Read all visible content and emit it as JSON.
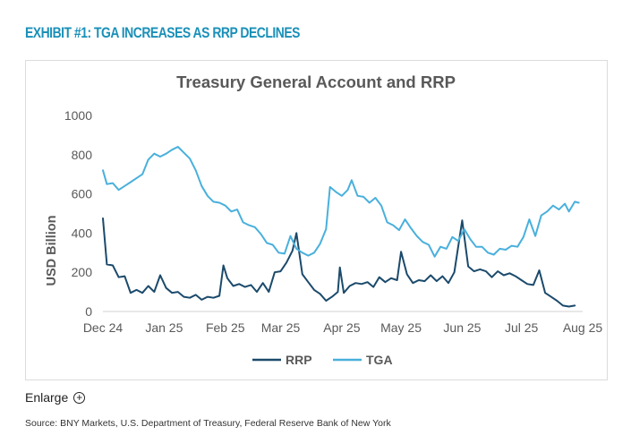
{
  "header": {
    "exhibit_title": "EXHIBIT #1: TGA INCREASES AS RRP DECLINES"
  },
  "enlarge": {
    "label": "Enlarge",
    "icon": "plus-circle-icon"
  },
  "footer": {
    "source": "Source: BNY Markets, U.S. Department of Treasury, Federal Reserve Bank of New York"
  },
  "colors": {
    "title_accent": "#1a90b8",
    "rrp": "#1b4a6b",
    "tga": "#49b0dc"
  },
  "chart_data": {
    "type": "line",
    "title": "Treasury General Account and RRP",
    "ylabel": "USD Billion",
    "xlabel": "",
    "ylim": [
      0,
      1000
    ],
    "yticks": [
      0,
      200,
      400,
      600,
      800,
      1000
    ],
    "xlim": [
      "2024-12-01",
      "2025-08-01"
    ],
    "xticks": [
      {
        "date": "2024-12-01",
        "label": "Dec 24"
      },
      {
        "date": "2025-01-01",
        "label": "Jan 25"
      },
      {
        "date": "2025-02-01",
        "label": "Feb 25"
      },
      {
        "date": "2025-03-01",
        "label": "Mar 25"
      },
      {
        "date": "2025-04-01",
        "label": "Apr 25"
      },
      {
        "date": "2025-05-01",
        "label": "May 25"
      },
      {
        "date": "2025-06-01",
        "label": "Jun 25"
      },
      {
        "date": "2025-07-01",
        "label": "Jul 25"
      },
      {
        "date": "2025-08-01",
        "label": "Aug 25"
      }
    ],
    "grid": false,
    "legend": "bottom",
    "series": [
      {
        "name": "RRP",
        "color": "#1b4a6b",
        "points": [
          [
            "2024-12-01",
            475
          ],
          [
            "2024-12-03",
            240
          ],
          [
            "2024-12-06",
            235
          ],
          [
            "2024-12-09",
            175
          ],
          [
            "2024-12-12",
            180
          ],
          [
            "2024-12-15",
            95
          ],
          [
            "2024-12-18",
            110
          ],
          [
            "2024-12-21",
            95
          ],
          [
            "2024-12-24",
            130
          ],
          [
            "2024-12-27",
            100
          ],
          [
            "2024-12-30",
            185
          ],
          [
            "2025-01-02",
            120
          ],
          [
            "2025-01-05",
            95
          ],
          [
            "2025-01-08",
            100
          ],
          [
            "2025-01-11",
            75
          ],
          [
            "2025-01-14",
            70
          ],
          [
            "2025-01-17",
            85
          ],
          [
            "2025-01-20",
            60
          ],
          [
            "2025-01-23",
            75
          ],
          [
            "2025-01-26",
            70
          ],
          [
            "2025-01-29",
            80
          ],
          [
            "2025-01-31",
            235
          ],
          [
            "2025-02-02",
            170
          ],
          [
            "2025-02-05",
            130
          ],
          [
            "2025-02-08",
            140
          ],
          [
            "2025-02-11",
            125
          ],
          [
            "2025-02-14",
            135
          ],
          [
            "2025-02-17",
            100
          ],
          [
            "2025-02-20",
            145
          ],
          [
            "2025-02-23",
            100
          ],
          [
            "2025-02-26",
            200
          ],
          [
            "2025-03-01",
            205
          ],
          [
            "2025-03-04",
            250
          ],
          [
            "2025-03-07",
            310
          ],
          [
            "2025-03-09",
            400
          ],
          [
            "2025-03-12",
            190
          ],
          [
            "2025-03-15",
            150
          ],
          [
            "2025-03-18",
            110
          ],
          [
            "2025-03-21",
            90
          ],
          [
            "2025-03-24",
            55
          ],
          [
            "2025-03-27",
            75
          ],
          [
            "2025-03-30",
            100
          ],
          [
            "2025-03-31",
            225
          ],
          [
            "2025-04-02",
            95
          ],
          [
            "2025-04-05",
            130
          ],
          [
            "2025-04-08",
            145
          ],
          [
            "2025-04-11",
            140
          ],
          [
            "2025-04-14",
            150
          ],
          [
            "2025-04-17",
            125
          ],
          [
            "2025-04-20",
            175
          ],
          [
            "2025-04-23",
            150
          ],
          [
            "2025-04-26",
            170
          ],
          [
            "2025-04-29",
            160
          ],
          [
            "2025-05-01",
            305
          ],
          [
            "2025-05-04",
            190
          ],
          [
            "2025-05-07",
            145
          ],
          [
            "2025-05-10",
            160
          ],
          [
            "2025-05-13",
            155
          ],
          [
            "2025-05-16",
            185
          ],
          [
            "2025-05-19",
            155
          ],
          [
            "2025-05-22",
            180
          ],
          [
            "2025-05-25",
            145
          ],
          [
            "2025-05-28",
            200
          ],
          [
            "2025-06-01",
            465
          ],
          [
            "2025-06-04",
            230
          ],
          [
            "2025-06-07",
            205
          ],
          [
            "2025-06-10",
            215
          ],
          [
            "2025-06-13",
            205
          ],
          [
            "2025-06-16",
            175
          ],
          [
            "2025-06-19",
            205
          ],
          [
            "2025-06-22",
            185
          ],
          [
            "2025-06-25",
            195
          ],
          [
            "2025-06-28",
            180
          ],
          [
            "2025-07-01",
            160
          ],
          [
            "2025-07-04",
            140
          ],
          [
            "2025-07-07",
            135
          ],
          [
            "2025-07-10",
            210
          ],
          [
            "2025-07-13",
            95
          ],
          [
            "2025-07-16",
            75
          ],
          [
            "2025-07-19",
            55
          ],
          [
            "2025-07-22",
            30
          ],
          [
            "2025-07-25",
            25
          ],
          [
            "2025-07-28",
            30
          ]
        ]
      },
      {
        "name": "TGA",
        "color": "#49b0dc",
        "points": [
          [
            "2024-12-01",
            720
          ],
          [
            "2024-12-03",
            650
          ],
          [
            "2024-12-06",
            655
          ],
          [
            "2024-12-09",
            620
          ],
          [
            "2024-12-12",
            640
          ],
          [
            "2024-12-15",
            660
          ],
          [
            "2024-12-18",
            680
          ],
          [
            "2024-12-21",
            700
          ],
          [
            "2024-12-24",
            775
          ],
          [
            "2024-12-27",
            805
          ],
          [
            "2024-12-30",
            790
          ],
          [
            "2025-01-02",
            805
          ],
          [
            "2025-01-05",
            825
          ],
          [
            "2025-01-08",
            840
          ],
          [
            "2025-01-11",
            810
          ],
          [
            "2025-01-14",
            780
          ],
          [
            "2025-01-17",
            720
          ],
          [
            "2025-01-20",
            640
          ],
          [
            "2025-01-23",
            590
          ],
          [
            "2025-01-26",
            560
          ],
          [
            "2025-01-29",
            555
          ],
          [
            "2025-02-01",
            540
          ],
          [
            "2025-02-04",
            510
          ],
          [
            "2025-02-07",
            520
          ],
          [
            "2025-02-10",
            455
          ],
          [
            "2025-02-13",
            440
          ],
          [
            "2025-02-16",
            430
          ],
          [
            "2025-02-19",
            395
          ],
          [
            "2025-02-22",
            350
          ],
          [
            "2025-02-25",
            340
          ],
          [
            "2025-02-28",
            300
          ],
          [
            "2025-03-03",
            295
          ],
          [
            "2025-03-06",
            385
          ],
          [
            "2025-03-09",
            320
          ],
          [
            "2025-03-12",
            300
          ],
          [
            "2025-03-15",
            285
          ],
          [
            "2025-03-18",
            300
          ],
          [
            "2025-03-21",
            345
          ],
          [
            "2025-03-24",
            420
          ],
          [
            "2025-03-26",
            635
          ],
          [
            "2025-03-29",
            610
          ],
          [
            "2025-04-01",
            590
          ],
          [
            "2025-04-04",
            620
          ],
          [
            "2025-04-06",
            670
          ],
          [
            "2025-04-09",
            590
          ],
          [
            "2025-04-12",
            585
          ],
          [
            "2025-04-15",
            555
          ],
          [
            "2025-04-18",
            580
          ],
          [
            "2025-04-21",
            540
          ],
          [
            "2025-04-24",
            455
          ],
          [
            "2025-04-27",
            440
          ],
          [
            "2025-04-30",
            415
          ],
          [
            "2025-05-03",
            470
          ],
          [
            "2025-05-06",
            425
          ],
          [
            "2025-05-09",
            385
          ],
          [
            "2025-05-12",
            355
          ],
          [
            "2025-05-15",
            340
          ],
          [
            "2025-05-18",
            280
          ],
          [
            "2025-05-21",
            330
          ],
          [
            "2025-05-24",
            320
          ],
          [
            "2025-05-27",
            380
          ],
          [
            "2025-05-30",
            360
          ],
          [
            "2025-06-02",
            420
          ],
          [
            "2025-06-05",
            370
          ],
          [
            "2025-06-08",
            330
          ],
          [
            "2025-06-11",
            330
          ],
          [
            "2025-06-14",
            300
          ],
          [
            "2025-06-17",
            290
          ],
          [
            "2025-06-20",
            320
          ],
          [
            "2025-06-23",
            315
          ],
          [
            "2025-06-26",
            335
          ],
          [
            "2025-06-29",
            330
          ],
          [
            "2025-07-02",
            380
          ],
          [
            "2025-07-05",
            470
          ],
          [
            "2025-07-08",
            385
          ],
          [
            "2025-07-11",
            490
          ],
          [
            "2025-07-14",
            510
          ],
          [
            "2025-07-17",
            540
          ],
          [
            "2025-07-20",
            520
          ],
          [
            "2025-07-23",
            550
          ],
          [
            "2025-07-25",
            510
          ],
          [
            "2025-07-28",
            560
          ],
          [
            "2025-07-30",
            555
          ]
        ]
      }
    ]
  }
}
